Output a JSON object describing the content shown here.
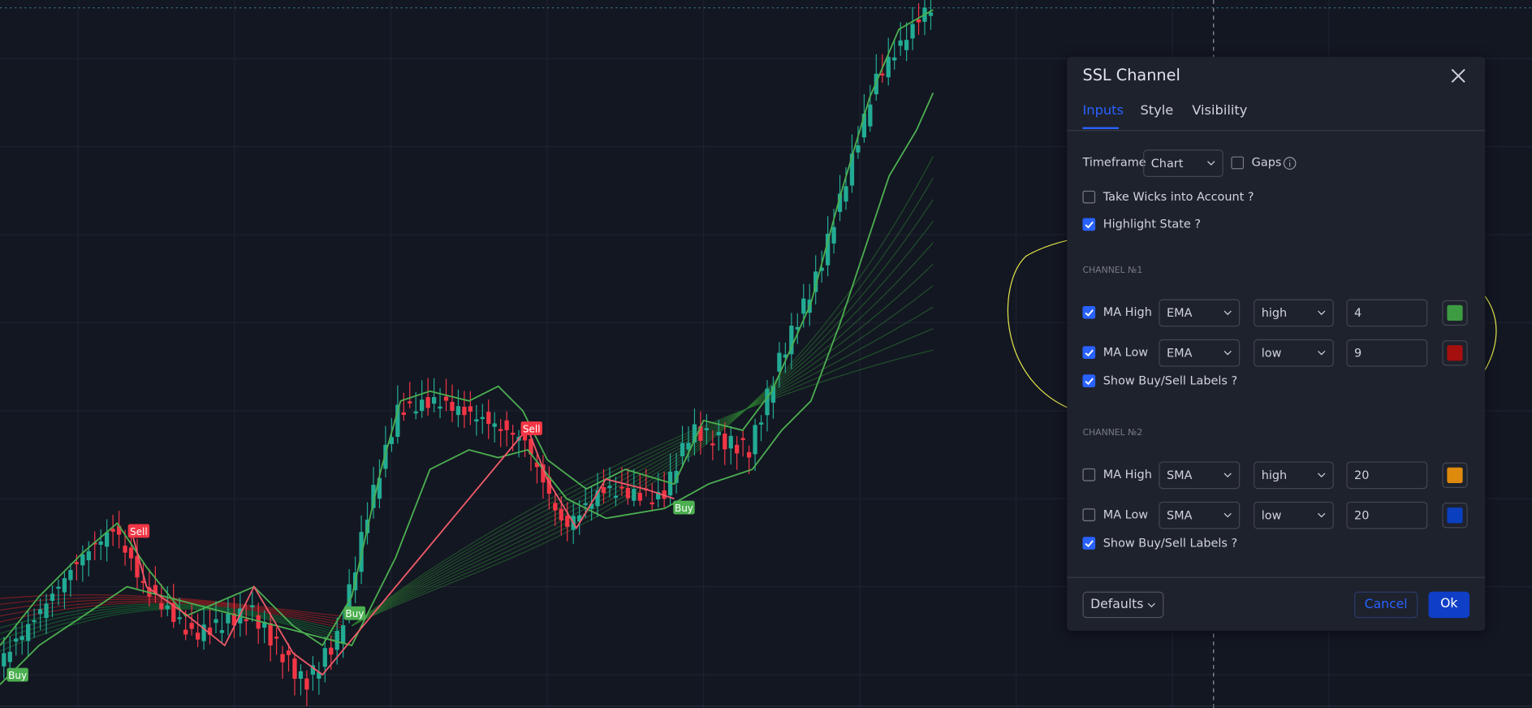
{
  "chart_labels": [
    "Buy",
    "Sell",
    "Buy",
    "Sell",
    "Buy"
  ],
  "dialog": {
    "title": "SSL Channel",
    "tabs": [
      "Inputs",
      "Style",
      "Visibility"
    ],
    "timeframe": {
      "label": "Timeframe",
      "value": "Chart",
      "gaps": "Gaps",
      "gaps_checked": false
    },
    "options": [
      {
        "label": "Take Wicks into Account ?",
        "checked": false
      },
      {
        "label": "Highlight State ?",
        "checked": true
      }
    ],
    "channels": [
      {
        "heading": "CHANNEL №1",
        "rows": [
          {
            "label": "MA High",
            "checked": true,
            "type": "EMA",
            "source": "high",
            "length": 4,
            "color": "#3d9b42"
          },
          {
            "label": "MA Low",
            "checked": true,
            "type": "EMA",
            "source": "low",
            "length": 9,
            "color": "#a5100f"
          }
        ],
        "labels_option": {
          "label": "Show Buy/Sell Labels ?",
          "checked": true
        }
      },
      {
        "heading": "CHANNEL №2",
        "rows": [
          {
            "label": "MA High",
            "checked": false,
            "type": "SMA",
            "source": "high",
            "length": 20,
            "color": "#de8a0c"
          },
          {
            "label": "MA Low",
            "checked": false,
            "type": "SMA",
            "source": "low",
            "length": 20,
            "color": "#0a3fbf"
          }
        ],
        "labels_option": {
          "label": "Show Buy/Sell Labels ?",
          "checked": true
        }
      }
    ],
    "footer": {
      "defaults": "Defaults",
      "cancel": "Cancel",
      "ok": "Ok"
    }
  }
}
